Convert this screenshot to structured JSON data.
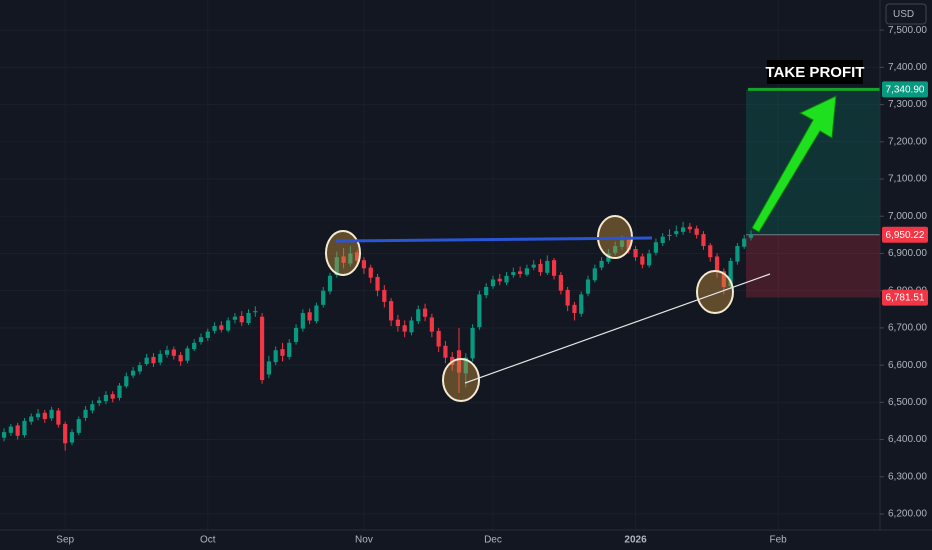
{
  "chart_data": {
    "type": "candlestick",
    "currency": "USD",
    "up_color": "#089981",
    "down_color": "#f23645",
    "xlim": [
      -0.6,
      129
    ],
    "xticks": [
      {
        "value": 9,
        "label": "Sep"
      },
      {
        "value": 30,
        "label": "Oct"
      },
      {
        "value": 53,
        "label": "Nov"
      },
      {
        "value": 72,
        "label": "Dec"
      },
      {
        "value": 93,
        "label": "2026"
      },
      {
        "value": 114,
        "label": "Feb"
      }
    ],
    "ylim": [
      6157,
      7581
    ],
    "yticks": [
      {
        "value": 6200,
        "label": "6,200.00"
      },
      {
        "value": 6300,
        "label": "6,300.00"
      },
      {
        "value": 6400,
        "label": "6,400.00"
      },
      {
        "value": 6500,
        "label": "6,500.00"
      },
      {
        "value": 6600,
        "label": "6,600.00"
      },
      {
        "value": 6700,
        "label": "6,700.00"
      },
      {
        "value": 6800,
        "label": "6,800.00"
      },
      {
        "value": 6900,
        "label": "6,900.00"
      },
      {
        "value": 7000,
        "label": "7,000.00"
      },
      {
        "value": 7100,
        "label": "7,100.00"
      },
      {
        "value": 7200,
        "label": "7,200.00"
      },
      {
        "value": 7300,
        "label": "7,300.00"
      },
      {
        "value": 7400,
        "label": "7,400.00"
      },
      {
        "value": 7500,
        "label": "7,500.00"
      }
    ],
    "grid": true,
    "open": [
      6405,
      6418,
      6438,
      6412,
      6448,
      6460,
      6472,
      6457,
      6478,
      6442,
      6392,
      6418,
      6458,
      6478,
      6498,
      6503,
      6522,
      6512,
      6543,
      6572,
      6583,
      6603,
      6622,
      6607,
      6628,
      6642,
      6627,
      6612,
      6643,
      6662,
      6673,
      6692,
      6707,
      6693,
      6722,
      6732,
      6713,
      6742,
      6730,
      6575,
      6608,
      6643,
      6622,
      6662,
      6698,
      6742,
      6718,
      6762,
      6798,
      6842,
      6892,
      6873,
      6903,
      6882,
      6862,
      6837,
      6802,
      6772,
      6722,
      6707,
      6688,
      6718,
      6752,
      6728,
      6692,
      6652,
      6622,
      6640,
      6578,
      6618,
      6702,
      6788,
      6812,
      6832,
      6822,
      6842,
      6852,
      6843,
      6862,
      6872,
      6848,
      6882,
      6842,
      6802,
      6762,
      6738,
      6792,
      6828,
      6862,
      6878,
      6902,
      6918,
      6937,
      6912,
      6892,
      6868,
      6902,
      6928,
      6947,
      6952,
      6958,
      6972,
      6967,
      6952,
      6922,
      6892,
      6852,
      6812,
      6878,
      6918,
      6942
    ],
    "high": [
      6430,
      6442,
      6445,
      6458,
      6470,
      6482,
      6480,
      6488,
      6485,
      6448,
      6428,
      6462,
      6490,
      6505,
      6515,
      6530,
      6530,
      6552,
      6580,
      6595,
      6608,
      6630,
      6632,
      6640,
      6652,
      6650,
      6635,
      6652,
      6670,
      6685,
      6698,
      6715,
      6718,
      6728,
      6740,
      6745,
      6750,
      6758,
      6740,
      6625,
      6650,
      6660,
      6670,
      6710,
      6750,
      6752,
      6768,
      6810,
      6848,
      6905,
      6915,
      6920,
      6910,
      6890,
      6870,
      6845,
      6815,
      6780,
      6735,
      6720,
      6730,
      6760,
      6765,
      6738,
      6700,
      6665,
      6635,
      6700,
      6632,
      6710,
      6800,
      6820,
      6840,
      6845,
      6850,
      6862,
      6865,
      6870,
      6882,
      6885,
      6895,
      6888,
      6850,
      6810,
      6770,
      6798,
      6840,
      6870,
      6890,
      6912,
      6932,
      6948,
      6945,
      6920,
      6900,
      6910,
      6940,
      6955,
      6965,
      6975,
      6985,
      6982,
      6975,
      6960,
      6928,
      6900,
      6860,
      6888,
      6928,
      6950,
      6962
    ],
    "low": [
      6395,
      6410,
      6400,
      6405,
      6440,
      6452,
      6445,
      6450,
      6432,
      6370,
      6385,
      6412,
      6450,
      6470,
      6490,
      6495,
      6500,
      6505,
      6538,
      6565,
      6575,
      6598,
      6595,
      6600,
      6620,
      6615,
      6598,
      6605,
      6638,
      6655,
      6665,
      6685,
      6688,
      6688,
      6712,
      6705,
      6708,
      6730,
      6550,
      6565,
      6600,
      6610,
      6615,
      6655,
      6690,
      6710,
      6712,
      6755,
      6790,
      6835,
      6860,
      6865,
      6870,
      6845,
      6820,
      6785,
      6755,
      6705,
      6690,
      6675,
      6680,
      6710,
      6718,
      6675,
      6635,
      6605,
      6585,
      6525,
      6540,
      6610,
      6695,
      6780,
      6805,
      6815,
      6815,
      6835,
      6835,
      6838,
      6855,
      6840,
      6842,
      6830,
      6790,
      6745,
      6720,
      6730,
      6785,
      6822,
      6855,
      6872,
      6895,
      6910,
      6900,
      6880,
      6860,
      6862,
      6895,
      6920,
      6935,
      6945,
      6950,
      6955,
      6940,
      6910,
      6878,
      6835,
      6790,
      6805,
      6870,
      6912,
      6935
    ],
    "close": [
      6420,
      6435,
      6410,
      6450,
      6462,
      6470,
      6455,
      6480,
      6440,
      6390,
      6420,
      6455,
      6480,
      6495,
      6505,
      6520,
      6510,
      6545,
      6570,
      6585,
      6600,
      6620,
      6605,
      6630,
      6640,
      6625,
      6610,
      6645,
      6660,
      6675,
      6690,
      6705,
      6695,
      6720,
      6730,
      6715,
      6740,
      6745,
      6560,
      6610,
      6640,
      6625,
      6660,
      6700,
      6740,
      6720,
      6760,
      6800,
      6840,
      6890,
      6875,
      6900,
      6880,
      6860,
      6835,
      6800,
      6770,
      6720,
      6705,
      6690,
      6720,
      6750,
      6730,
      6690,
      6650,
      6620,
      6600,
      6580,
      6620,
      6700,
      6790,
      6810,
      6830,
      6825,
      6840,
      6850,
      6845,
      6860,
      6870,
      6850,
      6880,
      6840,
      6800,
      6760,
      6740,
      6790,
      6830,
      6860,
      6880,
      6900,
      6920,
      6935,
      6910,
      6890,
      6870,
      6900,
      6930,
      6945,
      6950,
      6960,
      6970,
      6965,
      6950,
      6920,
      6890,
      6850,
      6810,
      6880,
      6920,
      6940,
      6950.22
    ],
    "position": {
      "annotation": "TAKE PROFIT",
      "target": {
        "value": 7340.9,
        "label": "7,340.90"
      },
      "entry": {
        "value": 6950.22,
        "label": "6,950.22"
      },
      "stop": {
        "value": 6781.51,
        "label": "6,781.51"
      }
    }
  }
}
